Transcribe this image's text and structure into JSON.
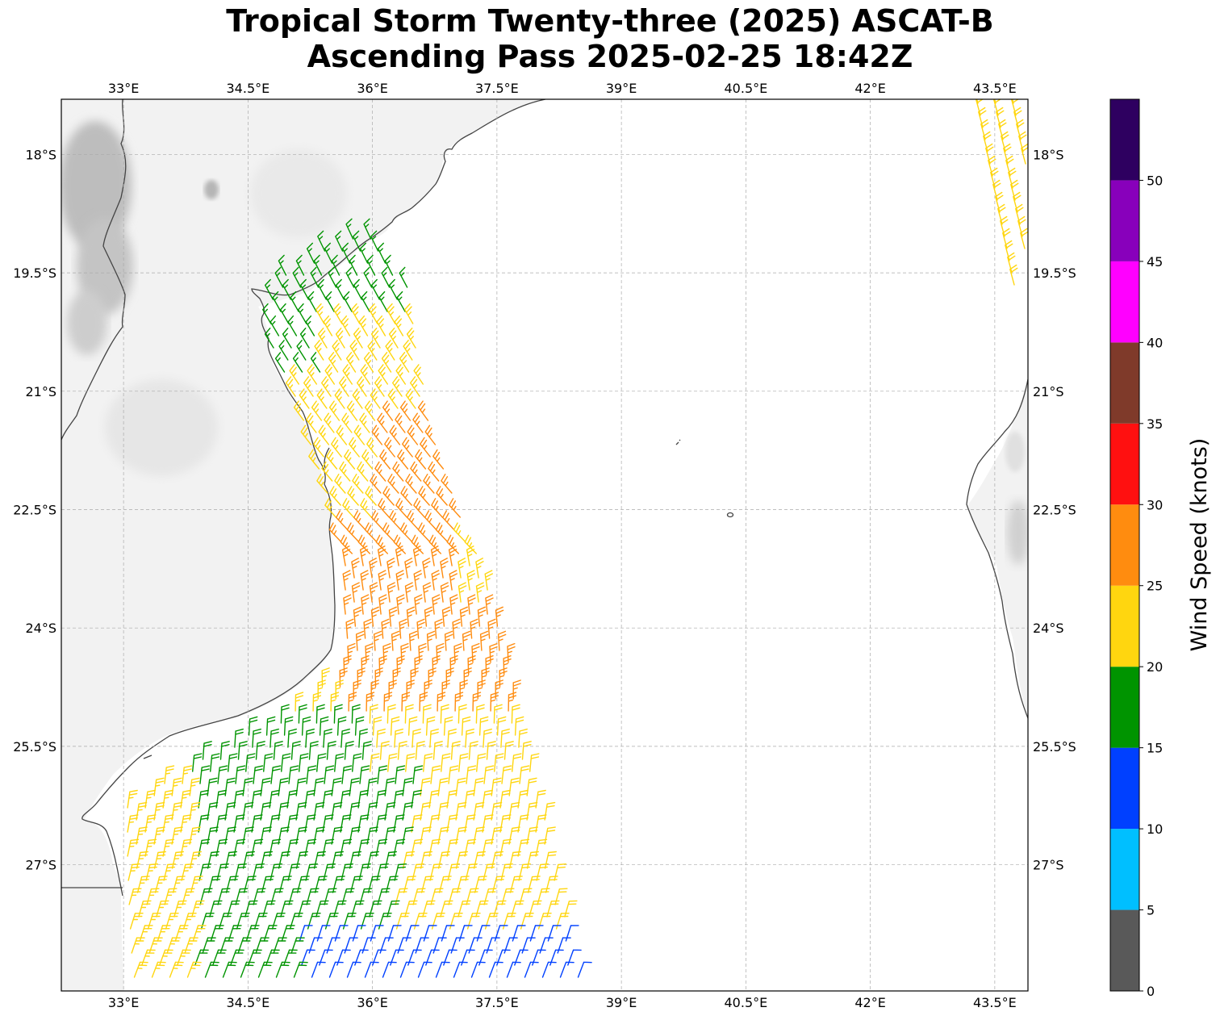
{
  "title": {
    "line1": "Tropical Storm Twenty-three (2025) ASCAT-B",
    "line2": "Ascending Pass 2025-02-25 18:42Z"
  },
  "map": {
    "lon_range": [
      32.25,
      43.9
    ],
    "lat_range": [
      -28.6,
      -17.3
    ],
    "lon_ticks": [
      {
        "value": 33,
        "label": "33°E"
      },
      {
        "value": 34.5,
        "label": "34.5°E"
      },
      {
        "value": 36,
        "label": "36°E"
      },
      {
        "value": 37.5,
        "label": "37.5°E"
      },
      {
        "value": 39,
        "label": "39°E"
      },
      {
        "value": 40.5,
        "label": "40.5°E"
      },
      {
        "value": 42,
        "label": "42°E"
      },
      {
        "value": 43.5,
        "label": "43.5°E"
      }
    ],
    "lat_ticks": [
      {
        "value": -18,
        "label": "18°S"
      },
      {
        "value": -19.5,
        "label": "19.5°S"
      },
      {
        "value": -21,
        "label": "21°S"
      },
      {
        "value": -22.5,
        "label": "22.5°S"
      },
      {
        "value": -24,
        "label": "24°S"
      },
      {
        "value": -25.5,
        "label": "25.5°S"
      },
      {
        "value": -27,
        "label": "27°S"
      }
    ],
    "gridlines": true,
    "land_shading": "grayscale terrain"
  },
  "colorbar": {
    "label": "Wind Speed (knots)",
    "tick_labels": [
      "0",
      "5",
      "10",
      "15",
      "20",
      "25",
      "30",
      "35",
      "40",
      "45",
      "50"
    ],
    "bins": [
      {
        "min": 0,
        "max": 5,
        "color": "#595959"
      },
      {
        "min": 5,
        "max": 10,
        "color": "#00bfff"
      },
      {
        "min": 10,
        "max": 15,
        "color": "#0040ff"
      },
      {
        "min": 15,
        "max": 20,
        "color": "#009400"
      },
      {
        "min": 20,
        "max": 25,
        "color": "#ffd60f"
      },
      {
        "min": 25,
        "max": 30,
        "color": "#ff8c0f"
      },
      {
        "min": 30,
        "max": 35,
        "color": "#ff1010"
      },
      {
        "min": 35,
        "max": 40,
        "color": "#7f3a2a"
      },
      {
        "min": 40,
        "max": 45,
        "color": "#ff00ff"
      },
      {
        "min": 45,
        "max": 50,
        "color": "#8800bb"
      },
      {
        "min": 50,
        "max": 55,
        "color": "#2e0060"
      }
    ]
  },
  "chart_data": {
    "type": "wind barbs",
    "units": "knots",
    "swath_zones": [
      {
        "region": "northern swath near coast 18.8°S–20.6°S",
        "typical_speed": 17
      },
      {
        "region": "central swath 20.6°S–22.4°S",
        "typical_speed": 23
      },
      {
        "region": "core offshore band 22.5°S–25°S",
        "typical_speed": 27
      },
      {
        "region": "southern swath east part 25°S–27.5°S",
        "typical_speed": 22
      },
      {
        "region": "southern swath west part 25°S–28.5°S",
        "typical_speed": 18
      },
      {
        "region": "far south edge 28°S–28.6°S",
        "typical_speed": 12
      },
      {
        "region": "second swath near 43.5°E, 17.3°S–19.8°S",
        "typical_speed": 22
      }
    ]
  }
}
